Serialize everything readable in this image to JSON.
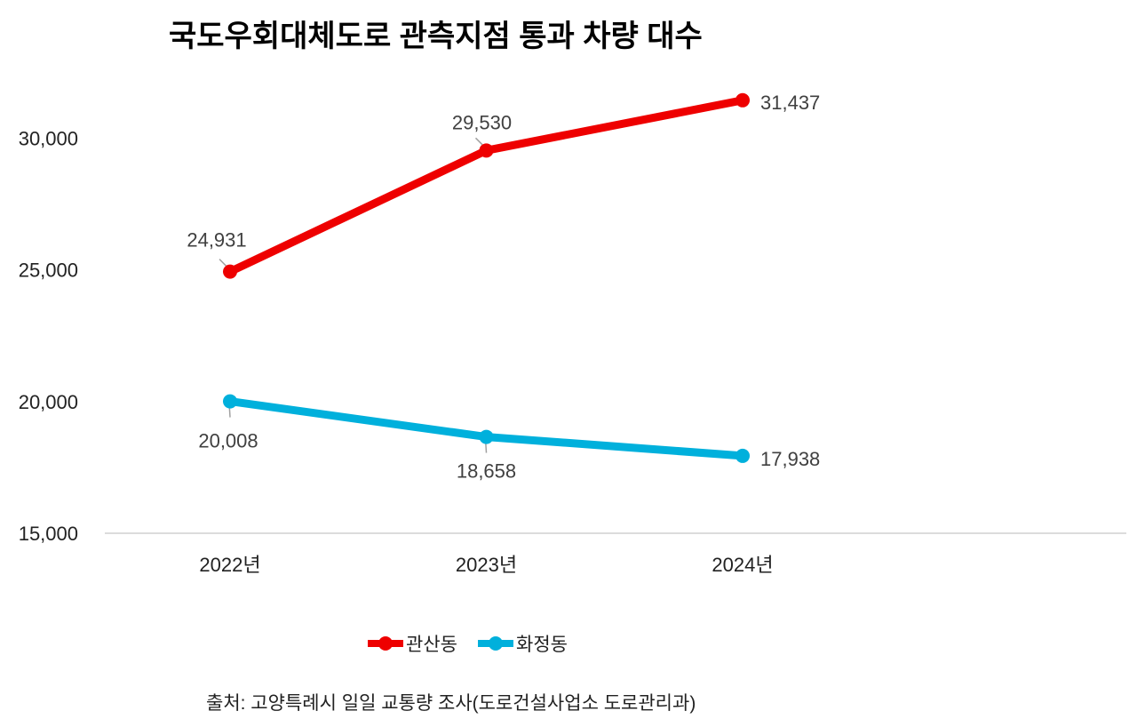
{
  "chart_data": {
    "type": "line",
    "title": "국도우회대체도로 관측지점 통과 차량 대수",
    "categories": [
      "2022년",
      "2023년",
      "2024년"
    ],
    "series": [
      {
        "name": "관산동",
        "values": [
          24931,
          29530,
          31437
        ],
        "labels": [
          "24,931",
          "29,530",
          "31,437"
        ],
        "color": "#ee0000"
      },
      {
        "name": "화정동",
        "values": [
          20008,
          18658,
          17938
        ],
        "labels": [
          "20,008",
          "18,658",
          "17,938"
        ],
        "color": "#00b0dc"
      }
    ],
    "ylim": [
      15000,
      31437
    ],
    "yticks": [
      15000,
      20000,
      25000,
      30000
    ],
    "ytick_labels": [
      "15,000",
      "20,000",
      "25,000",
      "30,000"
    ],
    "grid": false,
    "legend": "bottom",
    "source": "출처: 고양특례시 일일 교통량 조사(도로건설사업소 도로관리과)"
  }
}
